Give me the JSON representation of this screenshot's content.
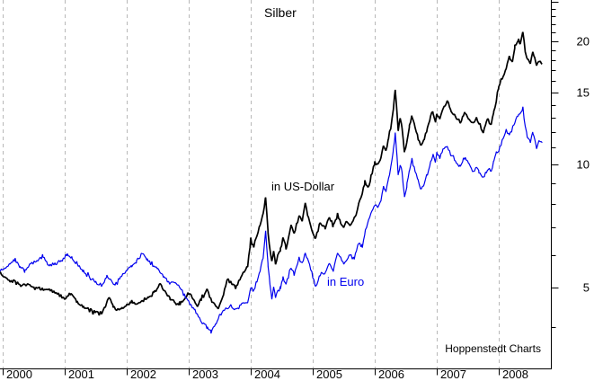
{
  "title": "Silber",
  "annotations": {
    "usd_label": "in US-Dollar",
    "eur_label": "in Euro",
    "watermark": "Hoppenstedt Charts"
  },
  "colors": {
    "usd_line": "#000000",
    "eur_line": "#0000ee",
    "grid": "#b8b8b8",
    "axis": "#000000",
    "background": "#ffffff"
  },
  "chart_data": {
    "type": "line",
    "title": "Silber",
    "grid": "vertical-dashed-per-year",
    "legend": "inline-labels-on-plot",
    "x_axis": {
      "ticks": [
        2000,
        2001,
        2002,
        2003,
        2004,
        2005,
        2006,
        2007,
        2008
      ],
      "tick_labels": [
        "2000",
        "2001",
        "2002",
        "2003",
        "2004",
        "2005",
        "2006",
        "2007",
        "2008"
      ],
      "range": [
        1999.95,
        2008.84
      ]
    },
    "y_axis": {
      "side": "right",
      "scale": "log",
      "labeled_ticks": [
        5,
        10,
        15,
        20
      ],
      "minor_ticks_from": 4,
      "minor_ticks_to": 25,
      "ylim": [
        3.17,
        25.2
      ]
    },
    "series": [
      {
        "name": "in US-Dollar",
        "color": "#000000",
        "points": [
          [
            1999.96,
            5.4
          ],
          [
            2000.05,
            5.3
          ],
          [
            2000.12,
            5.15
          ],
          [
            2000.2,
            5.2
          ],
          [
            2000.3,
            5.05
          ],
          [
            2000.4,
            5.1
          ],
          [
            2000.5,
            5.0
          ],
          [
            2000.6,
            4.95
          ],
          [
            2000.75,
            4.95
          ],
          [
            2000.9,
            4.8
          ],
          [
            2001.0,
            4.7
          ],
          [
            2001.1,
            4.85
          ],
          [
            2001.2,
            4.6
          ],
          [
            2001.3,
            4.5
          ],
          [
            2001.4,
            4.4
          ],
          [
            2001.5,
            4.35
          ],
          [
            2001.6,
            4.3
          ],
          [
            2001.67,
            4.55
          ],
          [
            2001.72,
            4.75
          ],
          [
            2001.78,
            4.5
          ],
          [
            2001.84,
            4.4
          ],
          [
            2001.92,
            4.45
          ],
          [
            2002.0,
            4.5
          ],
          [
            2002.08,
            4.6
          ],
          [
            2002.16,
            4.55
          ],
          [
            2002.25,
            4.65
          ],
          [
            2002.35,
            4.7
          ],
          [
            2002.45,
            4.9
          ],
          [
            2002.54,
            5.08
          ],
          [
            2002.62,
            4.85
          ],
          [
            2002.7,
            4.7
          ],
          [
            2002.78,
            4.6
          ],
          [
            2002.86,
            4.55
          ],
          [
            2002.93,
            4.7
          ],
          [
            2003.0,
            4.85
          ],
          [
            2003.07,
            4.7
          ],
          [
            2003.14,
            4.5
          ],
          [
            2003.2,
            4.7
          ],
          [
            2003.3,
            4.93
          ],
          [
            2003.38,
            4.6
          ],
          [
            2003.48,
            4.45
          ],
          [
            2003.56,
            4.8
          ],
          [
            2003.62,
            5.25
          ],
          [
            2003.7,
            5.1
          ],
          [
            2003.77,
            5.0
          ],
          [
            2003.84,
            5.3
          ],
          [
            2003.9,
            5.5
          ],
          [
            2003.95,
            5.6
          ],
          [
            2004.0,
            6.5
          ],
          [
            2004.05,
            6.3
          ],
          [
            2004.1,
            6.7
          ],
          [
            2004.15,
            7.1
          ],
          [
            2004.2,
            7.6
          ],
          [
            2004.24,
            8.3
          ],
          [
            2004.28,
            6.8
          ],
          [
            2004.31,
            6.2
          ],
          [
            2004.34,
            5.8
          ],
          [
            2004.37,
            6.1
          ],
          [
            2004.4,
            5.7
          ],
          [
            2004.44,
            6.0
          ],
          [
            2004.48,
            6.2
          ],
          [
            2004.52,
            6.65
          ],
          [
            2004.57,
            6.2
          ],
          [
            2004.65,
            7.1
          ],
          [
            2004.7,
            6.8
          ],
          [
            2004.78,
            7.5
          ],
          [
            2004.83,
            7.25
          ],
          [
            2004.88,
            8.05
          ],
          [
            2004.93,
            7.4
          ],
          [
            2005.0,
            6.8
          ],
          [
            2005.05,
            6.6
          ],
          [
            2005.12,
            7.2
          ],
          [
            2005.2,
            7.0
          ],
          [
            2005.27,
            7.45
          ],
          [
            2005.33,
            7.1
          ],
          [
            2005.4,
            7.5
          ],
          [
            2005.45,
            7.2
          ],
          [
            2005.5,
            7.0
          ],
          [
            2005.55,
            7.3
          ],
          [
            2005.6,
            7.1
          ],
          [
            2005.65,
            7.3
          ],
          [
            2005.7,
            7.5
          ],
          [
            2005.74,
            8.0
          ],
          [
            2005.78,
            8.3
          ],
          [
            2005.84,
            9.0
          ],
          [
            2005.89,
            8.8
          ],
          [
            2005.94,
            9.3
          ],
          [
            2006.0,
            10.1
          ],
          [
            2006.05,
            10.0
          ],
          [
            2006.1,
            10.4
          ],
          [
            2006.14,
            11.1
          ],
          [
            2006.18,
            10.8
          ],
          [
            2006.22,
            11.6
          ],
          [
            2006.26,
            12.3
          ],
          [
            2006.3,
            13.6
          ],
          [
            2006.33,
            15.2
          ],
          [
            2006.36,
            13.3
          ],
          [
            2006.38,
            12.1
          ],
          [
            2006.41,
            13.0
          ],
          [
            2006.44,
            12.3
          ],
          [
            2006.48,
            10.7
          ],
          [
            2006.52,
            11.4
          ],
          [
            2006.56,
            12.4
          ],
          [
            2006.6,
            13.2
          ],
          [
            2006.65,
            12.3
          ],
          [
            2006.7,
            11.6
          ],
          [
            2006.75,
            11.1
          ],
          [
            2006.8,
            11.6
          ],
          [
            2006.85,
            12.3
          ],
          [
            2006.9,
            13.1
          ],
          [
            2006.94,
            13.5
          ],
          [
            2006.98,
            12.7
          ],
          [
            2007.0,
            13.25
          ],
          [
            2007.05,
            12.9
          ],
          [
            2007.1,
            13.7
          ],
          [
            2007.17,
            14.3
          ],
          [
            2007.23,
            13.6
          ],
          [
            2007.3,
            13.1
          ],
          [
            2007.38,
            12.6
          ],
          [
            2007.43,
            13.2
          ],
          [
            2007.46,
            13.4
          ],
          [
            2007.52,
            12.9
          ],
          [
            2007.59,
            12.6
          ],
          [
            2007.64,
            13.0
          ],
          [
            2007.68,
            12.6
          ],
          [
            2007.75,
            12.0
          ],
          [
            2007.8,
            12.6
          ],
          [
            2007.83,
            12.85
          ],
          [
            2007.88,
            12.6
          ],
          [
            2007.92,
            13.4
          ],
          [
            2007.96,
            14.3
          ],
          [
            2008.0,
            15.45
          ],
          [
            2008.07,
            16.4
          ],
          [
            2008.12,
            17.3
          ],
          [
            2008.17,
            18.4
          ],
          [
            2008.22,
            17.7
          ],
          [
            2008.26,
            19.4
          ],
          [
            2008.32,
            20.1
          ],
          [
            2008.35,
            19.6
          ],
          [
            2008.39,
            21.1
          ],
          [
            2008.43,
            18.7
          ],
          [
            2008.46,
            18.2
          ],
          [
            2008.51,
            17.7
          ],
          [
            2008.55,
            18.9
          ],
          [
            2008.58,
            18.2
          ],
          [
            2008.61,
            17.4
          ],
          [
            2008.65,
            17.9
          ],
          [
            2008.7,
            17.6
          ]
        ]
      },
      {
        "name": "in Euro",
        "color": "#0000ee",
        "points": [
          [
            1999.96,
            5.5
          ],
          [
            2000.05,
            5.6
          ],
          [
            2000.12,
            5.75
          ],
          [
            2000.2,
            5.85
          ],
          [
            2000.28,
            5.6
          ],
          [
            2000.36,
            5.5
          ],
          [
            2000.45,
            5.7
          ],
          [
            2000.55,
            5.8
          ],
          [
            2000.65,
            5.95
          ],
          [
            2000.75,
            5.65
          ],
          [
            2000.85,
            5.7
          ],
          [
            2000.94,
            5.8
          ],
          [
            2001.04,
            6.05
          ],
          [
            2001.12,
            5.9
          ],
          [
            2001.2,
            5.7
          ],
          [
            2001.3,
            5.5
          ],
          [
            2001.4,
            5.3
          ],
          [
            2001.5,
            5.15
          ],
          [
            2001.6,
            5.05
          ],
          [
            2001.68,
            5.3
          ],
          [
            2001.75,
            5.2
          ],
          [
            2001.81,
            5.05
          ],
          [
            2001.9,
            5.3
          ],
          [
            2002.0,
            5.5
          ],
          [
            2002.08,
            5.65
          ],
          [
            2002.16,
            5.8
          ],
          [
            2002.25,
            6.05
          ],
          [
            2002.33,
            5.85
          ],
          [
            2002.42,
            5.65
          ],
          [
            2002.5,
            5.55
          ],
          [
            2002.6,
            5.3
          ],
          [
            2002.7,
            5.1
          ],
          [
            2002.78,
            5.15
          ],
          [
            2002.86,
            5.0
          ],
          [
            2002.93,
            4.8
          ],
          [
            2003.0,
            4.6
          ],
          [
            2003.1,
            4.4
          ],
          [
            2003.2,
            4.15
          ],
          [
            2003.3,
            4.0
          ],
          [
            2003.36,
            3.9
          ],
          [
            2003.44,
            4.1
          ],
          [
            2003.52,
            4.3
          ],
          [
            2003.6,
            4.45
          ],
          [
            2003.68,
            4.5
          ],
          [
            2003.75,
            4.4
          ],
          [
            2003.85,
            4.55
          ],
          [
            2003.95,
            4.6
          ],
          [
            2004.0,
            5.0
          ],
          [
            2004.05,
            4.9
          ],
          [
            2004.1,
            5.2
          ],
          [
            2004.15,
            5.5
          ],
          [
            2004.2,
            5.9
          ],
          [
            2004.24,
            6.85
          ],
          [
            2004.28,
            5.6
          ],
          [
            2004.31,
            5.1
          ],
          [
            2004.34,
            4.7
          ],
          [
            2004.37,
            5.0
          ],
          [
            2004.4,
            4.75
          ],
          [
            2004.44,
            4.95
          ],
          [
            2004.48,
            5.0
          ],
          [
            2004.52,
            5.3
          ],
          [
            2004.57,
            5.08
          ],
          [
            2004.65,
            5.6
          ],
          [
            2004.7,
            5.4
          ],
          [
            2004.78,
            5.9
          ],
          [
            2004.83,
            5.7
          ],
          [
            2004.88,
            6.1
          ],
          [
            2004.93,
            5.8
          ],
          [
            2005.0,
            5.3
          ],
          [
            2005.05,
            5.0
          ],
          [
            2005.12,
            5.4
          ],
          [
            2005.2,
            5.45
          ],
          [
            2005.27,
            5.7
          ],
          [
            2005.33,
            5.5
          ],
          [
            2005.4,
            6.1
          ],
          [
            2005.45,
            5.9
          ],
          [
            2005.5,
            5.75
          ],
          [
            2005.55,
            5.8
          ],
          [
            2005.6,
            6.0
          ],
          [
            2005.67,
            5.9
          ],
          [
            2005.74,
            6.4
          ],
          [
            2005.8,
            6.3
          ],
          [
            2005.85,
            6.9
          ],
          [
            2005.9,
            7.3
          ],
          [
            2005.95,
            7.7
          ],
          [
            2006.0,
            8.0
          ],
          [
            2006.05,
            7.9
          ],
          [
            2006.1,
            8.2
          ],
          [
            2006.14,
            8.8
          ],
          [
            2006.18,
            8.6
          ],
          [
            2006.22,
            9.2
          ],
          [
            2006.26,
            9.8
          ],
          [
            2006.3,
            10.8
          ],
          [
            2006.33,
            11.9
          ],
          [
            2006.36,
            10.4
          ],
          [
            2006.38,
            9.4
          ],
          [
            2006.41,
            10.1
          ],
          [
            2006.44,
            9.6
          ],
          [
            2006.48,
            8.3
          ],
          [
            2006.52,
            8.9
          ],
          [
            2006.56,
            9.7
          ],
          [
            2006.6,
            10.3
          ],
          [
            2006.65,
            9.6
          ],
          [
            2006.7,
            9.1
          ],
          [
            2006.75,
            8.7
          ],
          [
            2006.8,
            9.0
          ],
          [
            2006.85,
            9.5
          ],
          [
            2006.9,
            10.1
          ],
          [
            2006.94,
            10.5
          ],
          [
            2006.98,
            10.15
          ],
          [
            2007.0,
            10.7
          ],
          [
            2007.05,
            10.4
          ],
          [
            2007.1,
            10.9
          ],
          [
            2007.17,
            11.1
          ],
          [
            2007.23,
            10.5
          ],
          [
            2007.3,
            10.2
          ],
          [
            2007.38,
            9.85
          ],
          [
            2007.43,
            10.3
          ],
          [
            2007.46,
            10.4
          ],
          [
            2007.52,
            10.0
          ],
          [
            2007.59,
            9.6
          ],
          [
            2007.64,
            9.9
          ],
          [
            2007.68,
            9.6
          ],
          [
            2007.75,
            9.25
          ],
          [
            2007.8,
            9.6
          ],
          [
            2007.83,
            9.8
          ],
          [
            2007.88,
            9.6
          ],
          [
            2007.92,
            10.2
          ],
          [
            2007.96,
            10.7
          ],
          [
            2008.0,
            10.8
          ],
          [
            2008.07,
            11.55
          ],
          [
            2008.12,
            12.1
          ],
          [
            2008.17,
            11.7
          ],
          [
            2008.26,
            12.75
          ],
          [
            2008.32,
            13.2
          ],
          [
            2008.39,
            13.7
          ],
          [
            2008.43,
            12.3
          ],
          [
            2008.46,
            11.7
          ],
          [
            2008.51,
            11.4
          ],
          [
            2008.55,
            12.0
          ],
          [
            2008.58,
            11.55
          ],
          [
            2008.61,
            10.95
          ],
          [
            2008.65,
            11.45
          ],
          [
            2008.7,
            11.3
          ]
        ]
      }
    ]
  }
}
